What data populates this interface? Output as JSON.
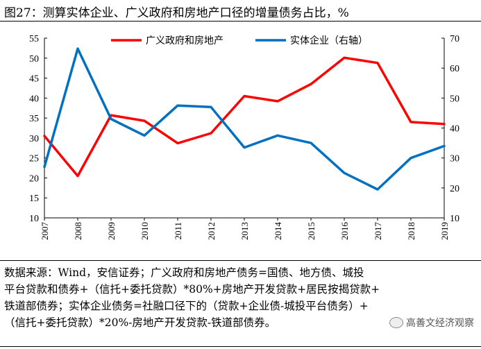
{
  "title": "图27：测算实体企业、广义政府和房地产口径的增量债务占比，%",
  "chart_data": {
    "type": "line",
    "categories": [
      "2007",
      "2008",
      "2009",
      "2010",
      "2011",
      "2012",
      "2013",
      "2014",
      "2015",
      "2016",
      "2017",
      "2018",
      "2019"
    ],
    "y_left": {
      "min": 10,
      "max": 55,
      "ticks": [
        10,
        15,
        20,
        25,
        30,
        35,
        40,
        45,
        50,
        55
      ]
    },
    "y_right": {
      "min": 10,
      "max": 70,
      "ticks": [
        10,
        20,
        30,
        40,
        50,
        60,
        70
      ]
    },
    "series": [
      {
        "name": "广义政府和房地产",
        "axis": "left",
        "color": "#ff0000",
        "values": [
          30.5,
          20.5,
          35.7,
          34.3,
          28.7,
          31.2,
          40.5,
          39.2,
          43.5,
          50.1,
          48.8,
          34.0,
          33.5
        ]
      },
      {
        "name": "实体企业（右轴）",
        "axis": "right",
        "color": "#0070c0",
        "values": [
          27.0,
          66.5,
          43.0,
          37.5,
          47.5,
          47.0,
          33.5,
          37.5,
          35.0,
          25.0,
          19.5,
          30.0,
          34.0
        ]
      }
    ],
    "grid": false,
    "legend": "top-center"
  },
  "source_lines": [
    "数据来源：Wind，安信证券；广义政府和房地产债务=国债、地方债、城投",
    "平台贷款和债券+（信托+委托贷款）*80%+房地产开发贷款+居民按揭贷款+",
    "铁道部债券；实体企业债务=社融口径下的（贷款+企业债-城投平台债务）+",
    "（信托+委托贷款）*20%-房地产开发贷款-铁道部债券。"
  ],
  "watermark": "高善文经济观察"
}
